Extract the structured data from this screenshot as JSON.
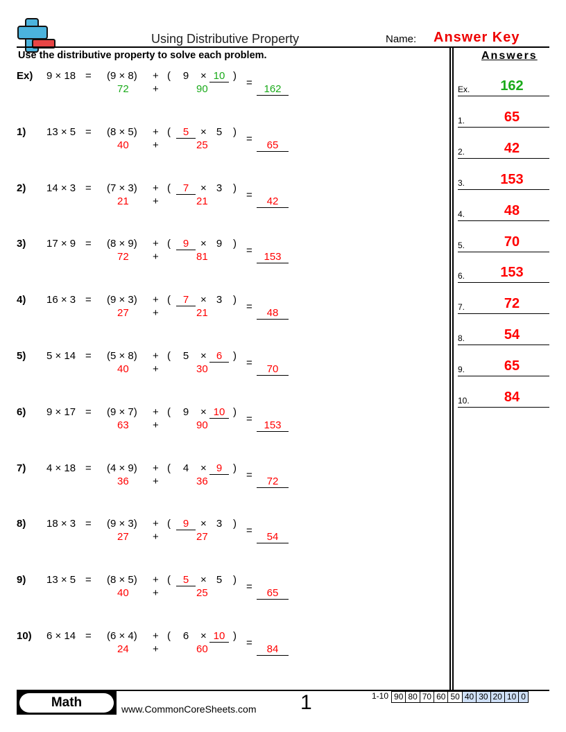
{
  "header": {
    "title": "Using Distributive Property",
    "name_label": "Name:",
    "name_value": "Answer Key",
    "instructions": "Use the distributive property to solve each problem."
  },
  "problems": [
    {
      "label": "Ex)",
      "q": "9 × 18",
      "l": "(9 × 8)",
      "a": "9",
      "b": "10",
      "blank": "b",
      "p1": "72",
      "p2": "90",
      "ans": "162",
      "color": "green"
    },
    {
      "label": "1)",
      "q": "13 × 5",
      "l": "(8 × 5)",
      "a": "5",
      "b": "5",
      "blank": "a",
      "p1": "40",
      "p2": "25",
      "ans": "65",
      "color": "red"
    },
    {
      "label": "2)",
      "q": "14 × 3",
      "l": "(7 × 3)",
      "a": "7",
      "b": "3",
      "blank": "a",
      "p1": "21",
      "p2": "21",
      "ans": "42",
      "color": "red"
    },
    {
      "label": "3)",
      "q": "17 × 9",
      "l": "(8 × 9)",
      "a": "9",
      "b": "9",
      "blank": "a",
      "p1": "72",
      "p2": "81",
      "ans": "153",
      "color": "red"
    },
    {
      "label": "4)",
      "q": "16 × 3",
      "l": "(9 × 3)",
      "a": "7",
      "b": "3",
      "blank": "a",
      "p1": "27",
      "p2": "21",
      "ans": "48",
      "color": "red"
    },
    {
      "label": "5)",
      "q": "5 × 14",
      "l": "(5 × 8)",
      "a": "5",
      "b": "6",
      "blank": "b",
      "p1": "40",
      "p2": "30",
      "ans": "70",
      "color": "red"
    },
    {
      "label": "6)",
      "q": "9 × 17",
      "l": "(9 × 7)",
      "a": "9",
      "b": "10",
      "blank": "b",
      "p1": "63",
      "p2": "90",
      "ans": "153",
      "color": "red"
    },
    {
      "label": "7)",
      "q": "4 × 18",
      "l": "(4 × 9)",
      "a": "4",
      "b": "9",
      "blank": "b",
      "p1": "36",
      "p2": "36",
      "ans": "72",
      "color": "red"
    },
    {
      "label": "8)",
      "q": "18 × 3",
      "l": "(9 × 3)",
      "a": "9",
      "b": "3",
      "blank": "a",
      "p1": "27",
      "p2": "27",
      "ans": "54",
      "color": "red"
    },
    {
      "label": "9)",
      "q": "13 × 5",
      "l": "(8 × 5)",
      "a": "5",
      "b": "5",
      "blank": "a",
      "p1": "40",
      "p2": "25",
      "ans": "65",
      "color": "red"
    },
    {
      "label": "10)",
      "q": "6 × 14",
      "l": "(6 × 4)",
      "a": "6",
      "b": "10",
      "blank": "b",
      "p1": "24",
      "p2": "60",
      "ans": "84",
      "color": "red"
    }
  ],
  "symbols": {
    "eq": "=",
    "plus": "+",
    "open": "(",
    "close": ")",
    "times": "×"
  },
  "answers": {
    "heading": "Answers",
    "items": [
      {
        "label": "Ex.",
        "value": "162",
        "color": "green"
      },
      {
        "label": "1.",
        "value": "65"
      },
      {
        "label": "2.",
        "value": "42"
      },
      {
        "label": "3.",
        "value": "153"
      },
      {
        "label": "4.",
        "value": "48"
      },
      {
        "label": "5.",
        "value": "70"
      },
      {
        "label": "6.",
        "value": "153"
      },
      {
        "label": "7.",
        "value": "72"
      },
      {
        "label": "8.",
        "value": "54"
      },
      {
        "label": "9.",
        "value": "65"
      },
      {
        "label": "10.",
        "value": "84"
      }
    ]
  },
  "footer": {
    "subject": "Math",
    "site": "www.CommonCoreSheets.com",
    "page": "1",
    "scale": [
      "1-10",
      "90",
      "80",
      "70",
      "60",
      "50",
      "40",
      "30",
      "20",
      "10",
      "0"
    ]
  },
  "colors": {
    "answer_red": "#ff0000",
    "example_green": "#1aaa1a",
    "scale_blue": "#cfe0f7",
    "logo_blue": "#4bb3dd",
    "logo_red": "#e84545"
  }
}
